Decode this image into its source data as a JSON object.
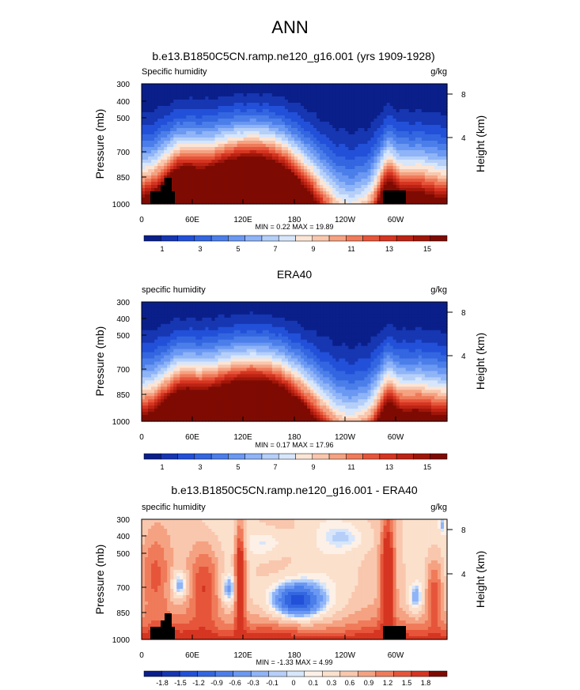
{
  "main_title": "ANN",
  "chart_data": [
    {
      "type": "heatmap",
      "title": "b.e13.B1850C5CN.ramp.ne120_g16.001 (yrs 1909-1928)",
      "variable_label": "Specific humidity",
      "units_label": "g/kg",
      "ylabel": "Pressure (mb)",
      "ylabel_right": "Height (km)",
      "y_ticks": [
        "300",
        "400",
        "500",
        "700",
        "850",
        "1000"
      ],
      "y_right_ticks": [
        "8",
        "4"
      ],
      "x_ticks": [
        "0",
        "60E",
        "120E",
        "180",
        "120W",
        "60W"
      ],
      "stats": "MIN =  0.22  MAX =  19.89",
      "colorbar_labels": [
        "1",
        "3",
        "5",
        "7",
        "9",
        "11",
        "13",
        "15"
      ],
      "colors": [
        "#0a1f8a",
        "#1636b2",
        "#2250d8",
        "#3366e0",
        "#4c7eea",
        "#6a98f2",
        "#8fb4f7",
        "#b5cff9",
        "#d7e6fb",
        "#fbe5d6",
        "#f9c7ad",
        "#f5a282",
        "#ef7b5a",
        "#e6553a",
        "#d53521",
        "#bc2314",
        "#9f1609",
        "#7e0b03"
      ],
      "levels": [
        0,
        1,
        2,
        3,
        4,
        5,
        6,
        7,
        8,
        9,
        10,
        11,
        12,
        13,
        14,
        15,
        16,
        17,
        20
      ],
      "field": "humidity",
      "min": 0.22,
      "max": 19.89
    },
    {
      "type": "heatmap",
      "title": "ERA40",
      "variable_label": "specific humidity",
      "units_label": "g/kg",
      "ylabel": "Pressure (mb)",
      "ylabel_right": "Height (km)",
      "y_ticks": [
        "300",
        "400",
        "500",
        "700",
        "850",
        "1000"
      ],
      "y_right_ticks": [
        "8",
        "4"
      ],
      "x_ticks": [
        "0",
        "60E",
        "120E",
        "180",
        "120W",
        "60W"
      ],
      "stats": "MIN =  0.17  MAX =  17.96",
      "colorbar_labels": [
        "1",
        "3",
        "5",
        "7",
        "9",
        "11",
        "13",
        "15"
      ],
      "colors": [
        "#0a1f8a",
        "#1636b2",
        "#2250d8",
        "#3366e0",
        "#4c7eea",
        "#6a98f2",
        "#8fb4f7",
        "#b5cff9",
        "#d7e6fb",
        "#fbe5d6",
        "#f9c7ad",
        "#f5a282",
        "#ef7b5a",
        "#e6553a",
        "#d53521",
        "#bc2314",
        "#9f1609",
        "#7e0b03"
      ],
      "levels": [
        0,
        1,
        2,
        3,
        4,
        5,
        6,
        7,
        8,
        9,
        10,
        11,
        12,
        13,
        14,
        15,
        16,
        17,
        20
      ],
      "field": "humidity",
      "min": 0.17,
      "max": 17.96
    },
    {
      "type": "heatmap",
      "title": "b.e13.B1850C5CN.ramp.ne120_g16.001 - ERA40",
      "variable_label": "specific humidity",
      "units_label": "g/kg",
      "ylabel": "Pressure (mb)",
      "ylabel_right": "Height (km)",
      "y_ticks": [
        "300",
        "400",
        "500",
        "700",
        "850",
        "1000"
      ],
      "y_right_ticks": [
        "8",
        "4"
      ],
      "x_ticks": [
        "0",
        "60E",
        "120E",
        "180",
        "120W",
        "60W"
      ],
      "stats": "MIN = -1.33  MAX =  4.99",
      "colorbar_labels": [
        "-1.8",
        "-1.5",
        "-1.2",
        "-0.9",
        "-0.6",
        "-0.3",
        "-0.1",
        "0",
        "0.1",
        "0.3",
        "0.6",
        "0.9",
        "1.2",
        "1.5",
        "1.8"
      ],
      "colors": [
        "#0a1f8a",
        "#1636b2",
        "#2250d8",
        "#3366e0",
        "#4c7eea",
        "#6a98f2",
        "#8fb4f7",
        "#b5cff9",
        "#d7e6fb",
        "#fdf0e6",
        "#fbe0cc",
        "#f9c7ad",
        "#f5a282",
        "#ef7b5a",
        "#e6553a",
        "#d53521",
        "#7e0b03"
      ],
      "levels": [
        -9,
        -1.8,
        -1.5,
        -1.2,
        -0.9,
        -0.6,
        -0.3,
        -0.1,
        0,
        0.1,
        0.3,
        0.6,
        0.9,
        1.2,
        1.5,
        1.8,
        9
      ],
      "field": "difference",
      "min": -1.33,
      "max": 4.99
    }
  ]
}
